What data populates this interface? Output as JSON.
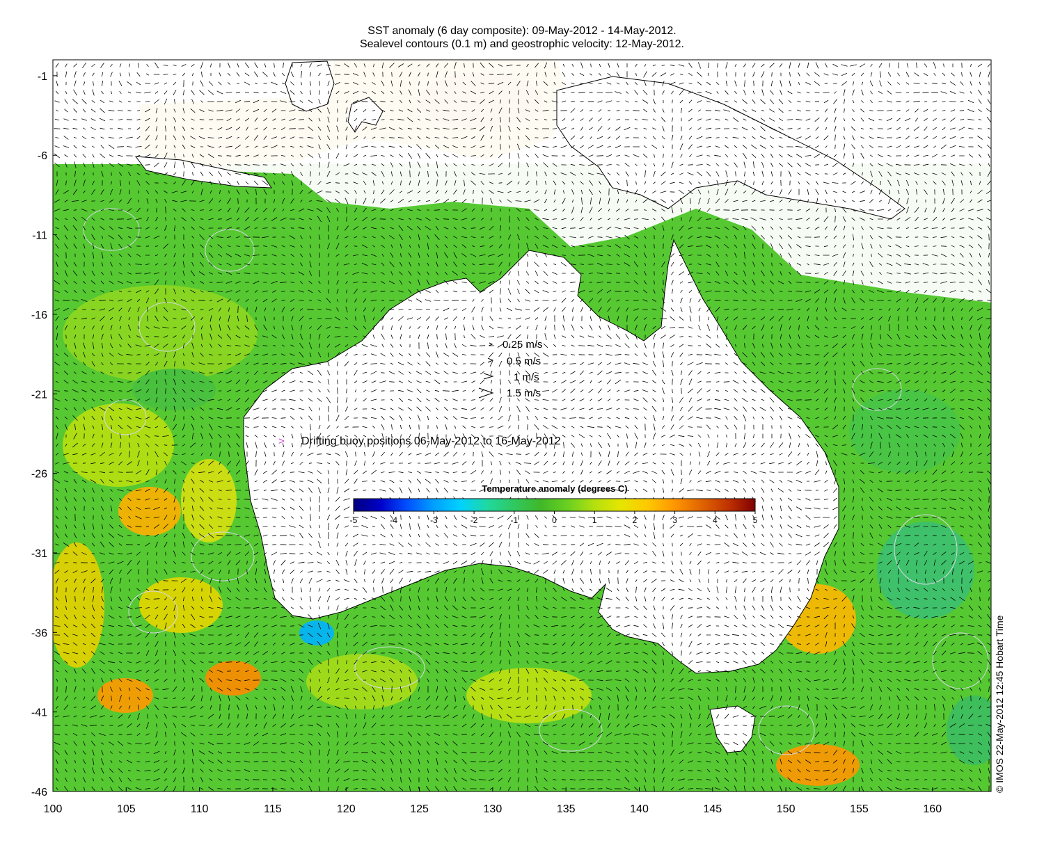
{
  "title": {
    "line1": "SST anomaly (6 day composite): 09-May-2012 - 14-May-2012.",
    "line2": "Sealevel contours (0.1 m) and geostrophic velocity: 12-May-2012."
  },
  "map": {
    "lon_range": [
      100,
      164
    ],
    "lat_range": [
      -46,
      0
    ],
    "x_ticks": [
      "100",
      "105",
      "110",
      "115",
      "120",
      "125",
      "130",
      "135",
      "140",
      "145",
      "150",
      "155",
      "160"
    ],
    "y_ticks": [
      "-1",
      "-6",
      "-11",
      "-16",
      "-21",
      "-26",
      "-31",
      "-36",
      "-41",
      "-46"
    ],
    "land_color": "#ffffff",
    "ocean_base_color": "#55c832",
    "contour_color": "#d8d8e8",
    "vector_color": "#000000",
    "buoy_color": "#d040d0"
  },
  "legend": {
    "speed_scale": [
      "0.25 m/s",
      "0.5 m/s",
      "1 m/s",
      "1.5 m/s"
    ],
    "buoy_marker": ">",
    "buoy_label": "Drifting buoy positions 06-May-2012 to 16-May-2012"
  },
  "colorbar": {
    "title": "Temperature anomaly (degrees C)",
    "range": [
      -5,
      5
    ],
    "ticks": [
      "-5",
      "-4",
      "-3",
      "-2",
      "-1",
      "0",
      "1",
      "2",
      "3",
      "4",
      "5"
    ],
    "colors": [
      "#00007f",
      "#0000c8",
      "#0050ff",
      "#00a0ff",
      "#00d2ff",
      "#20d8a0",
      "#30c860",
      "#40b828",
      "#6ad020",
      "#b4e010",
      "#e6e600",
      "#ffc800",
      "#ff9600",
      "#e06400",
      "#c03200",
      "#800000"
    ]
  },
  "credit": "© IMOS 22-May-2012 12:45 Hobart Time"
}
